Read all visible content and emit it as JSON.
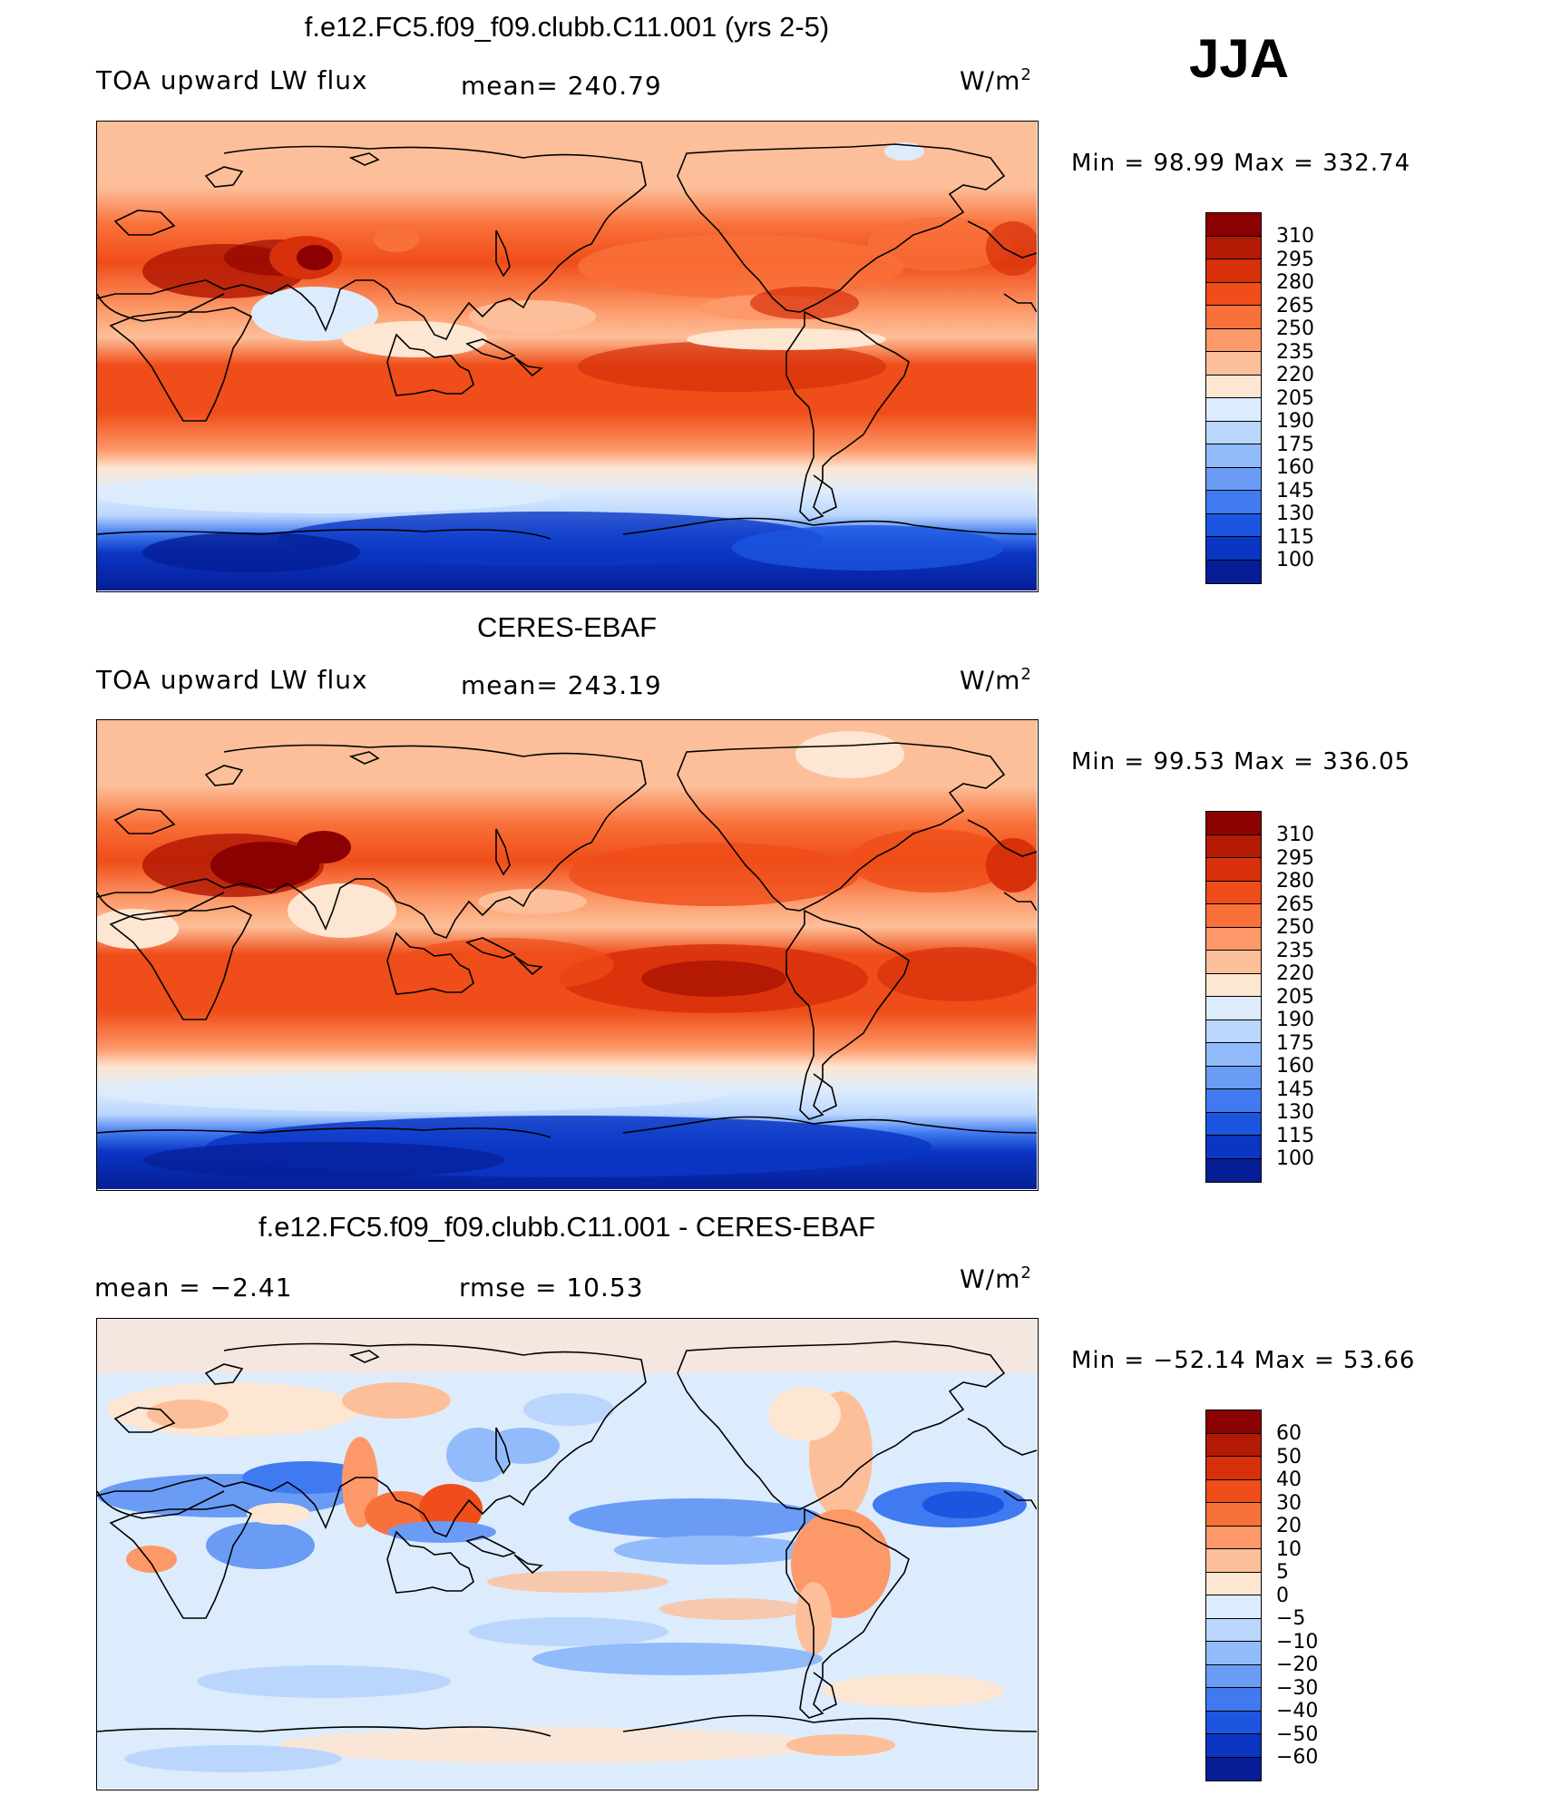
{
  "season": "JJA",
  "units": "W/m",
  "units_exp": "2",
  "panels": [
    {
      "title": "f.e12.FC5.f09_f09.clubb.C11.001 (yrs 2-5)",
      "left_label": "TOA upward LW flux",
      "center_label": "mean= 240.79",
      "minmax": "Min =   98.99 Max = 332.74"
    },
    {
      "title": "CERES-EBAF",
      "left_label": "TOA upward LW flux",
      "center_label": "mean= 243.19",
      "minmax": "Min =   99.53 Max = 336.05"
    },
    {
      "title": "f.e12.FC5.f09_f09.clubb.C11.001 - CERES-EBAF",
      "left_label": "mean =   −2.41",
      "center_label": "rmse =   10.53",
      "minmax": "Min = −52.14 Max =   53.66"
    }
  ],
  "colorbar_abs": {
    "labels": [
      "310",
      "295",
      "280",
      "265",
      "250",
      "235",
      "220",
      "205",
      "190",
      "175",
      "160",
      "145",
      "130",
      "115",
      "100"
    ],
    "colors": [
      "#8b0000",
      "#b41a03",
      "#d7300a",
      "#ef4d19",
      "#f9713a",
      "#fd9868",
      "#fdbf99",
      "#fde6d2",
      "#dcecfd",
      "#bbd6fd",
      "#92bbfb",
      "#6a9cf6",
      "#3f7af0",
      "#1c55e0",
      "#0b36c4",
      "#051e96"
    ]
  },
  "colorbar_diff": {
    "labels": [
      "60",
      "50",
      "40",
      "30",
      "20",
      "10",
      "5",
      "0",
      "−5",
      "−10",
      "−20",
      "−30",
      "−40",
      "−50",
      "−60"
    ],
    "colors": [
      "#8b0000",
      "#b41a03",
      "#d7300a",
      "#ef4d19",
      "#f9713a",
      "#fd9868",
      "#fdbf99",
      "#fde6d2",
      "#dcecfd",
      "#bbd6fd",
      "#92bbfb",
      "#6a9cf6",
      "#3f7af0",
      "#1c55e0",
      "#0b36c4",
      "#051e96"
    ]
  }
}
